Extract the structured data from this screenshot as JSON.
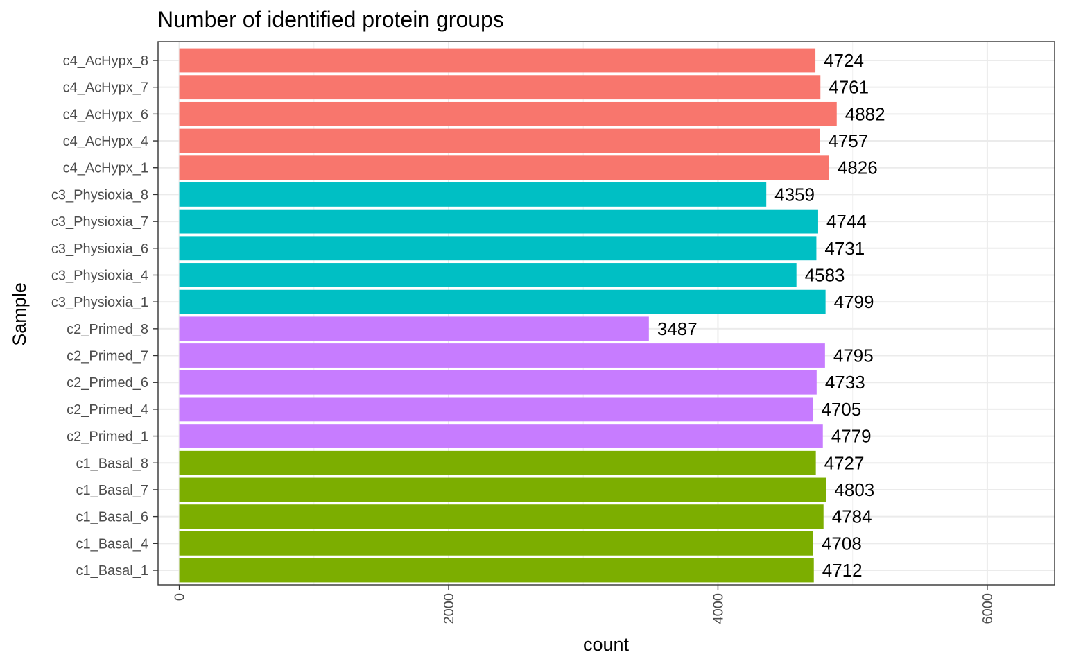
{
  "chart_data": {
    "type": "bar",
    "orientation": "horizontal",
    "title": "Number of identified protein groups",
    "xlabel": "count",
    "ylabel": "Sample",
    "xlim": [
      -157.5,
      6500
    ],
    "xticks": [
      0,
      2000,
      4000,
      6000
    ],
    "xtick_labels": [
      "0",
      "2000",
      "4000",
      "6000"
    ],
    "grid": true,
    "legend": "none",
    "categories": [
      "c4_AcHypx_8",
      "c4_AcHypx_7",
      "c4_AcHypx_6",
      "c4_AcHypx_4",
      "c4_AcHypx_1",
      "c3_Physioxia_8",
      "c3_Physioxia_7",
      "c3_Physioxia_6",
      "c3_Physioxia_4",
      "c3_Physioxia_1",
      "c2_Primed_8",
      "c2_Primed_7",
      "c2_Primed_6",
      "c2_Primed_4",
      "c2_Primed_1",
      "c1_Basal_8",
      "c1_Basal_7",
      "c1_Basal_6",
      "c1_Basal_4",
      "c1_Basal_1"
    ],
    "values": [
      4724,
      4761,
      4882,
      4757,
      4826,
      4359,
      4744,
      4731,
      4583,
      4799,
      3487,
      4795,
      4733,
      4705,
      4779,
      4727,
      4803,
      4784,
      4708,
      4712
    ],
    "groups": [
      "c4",
      "c4",
      "c4",
      "c4",
      "c4",
      "c3",
      "c3",
      "c3",
      "c3",
      "c3",
      "c2",
      "c2",
      "c2",
      "c2",
      "c2",
      "c1",
      "c1",
      "c1",
      "c1",
      "c1"
    ],
    "group_colors": {
      "c1": "#7CAE00",
      "c2": "#C77CFF",
      "c3": "#00BFC4",
      "c4": "#F8766D"
    }
  }
}
